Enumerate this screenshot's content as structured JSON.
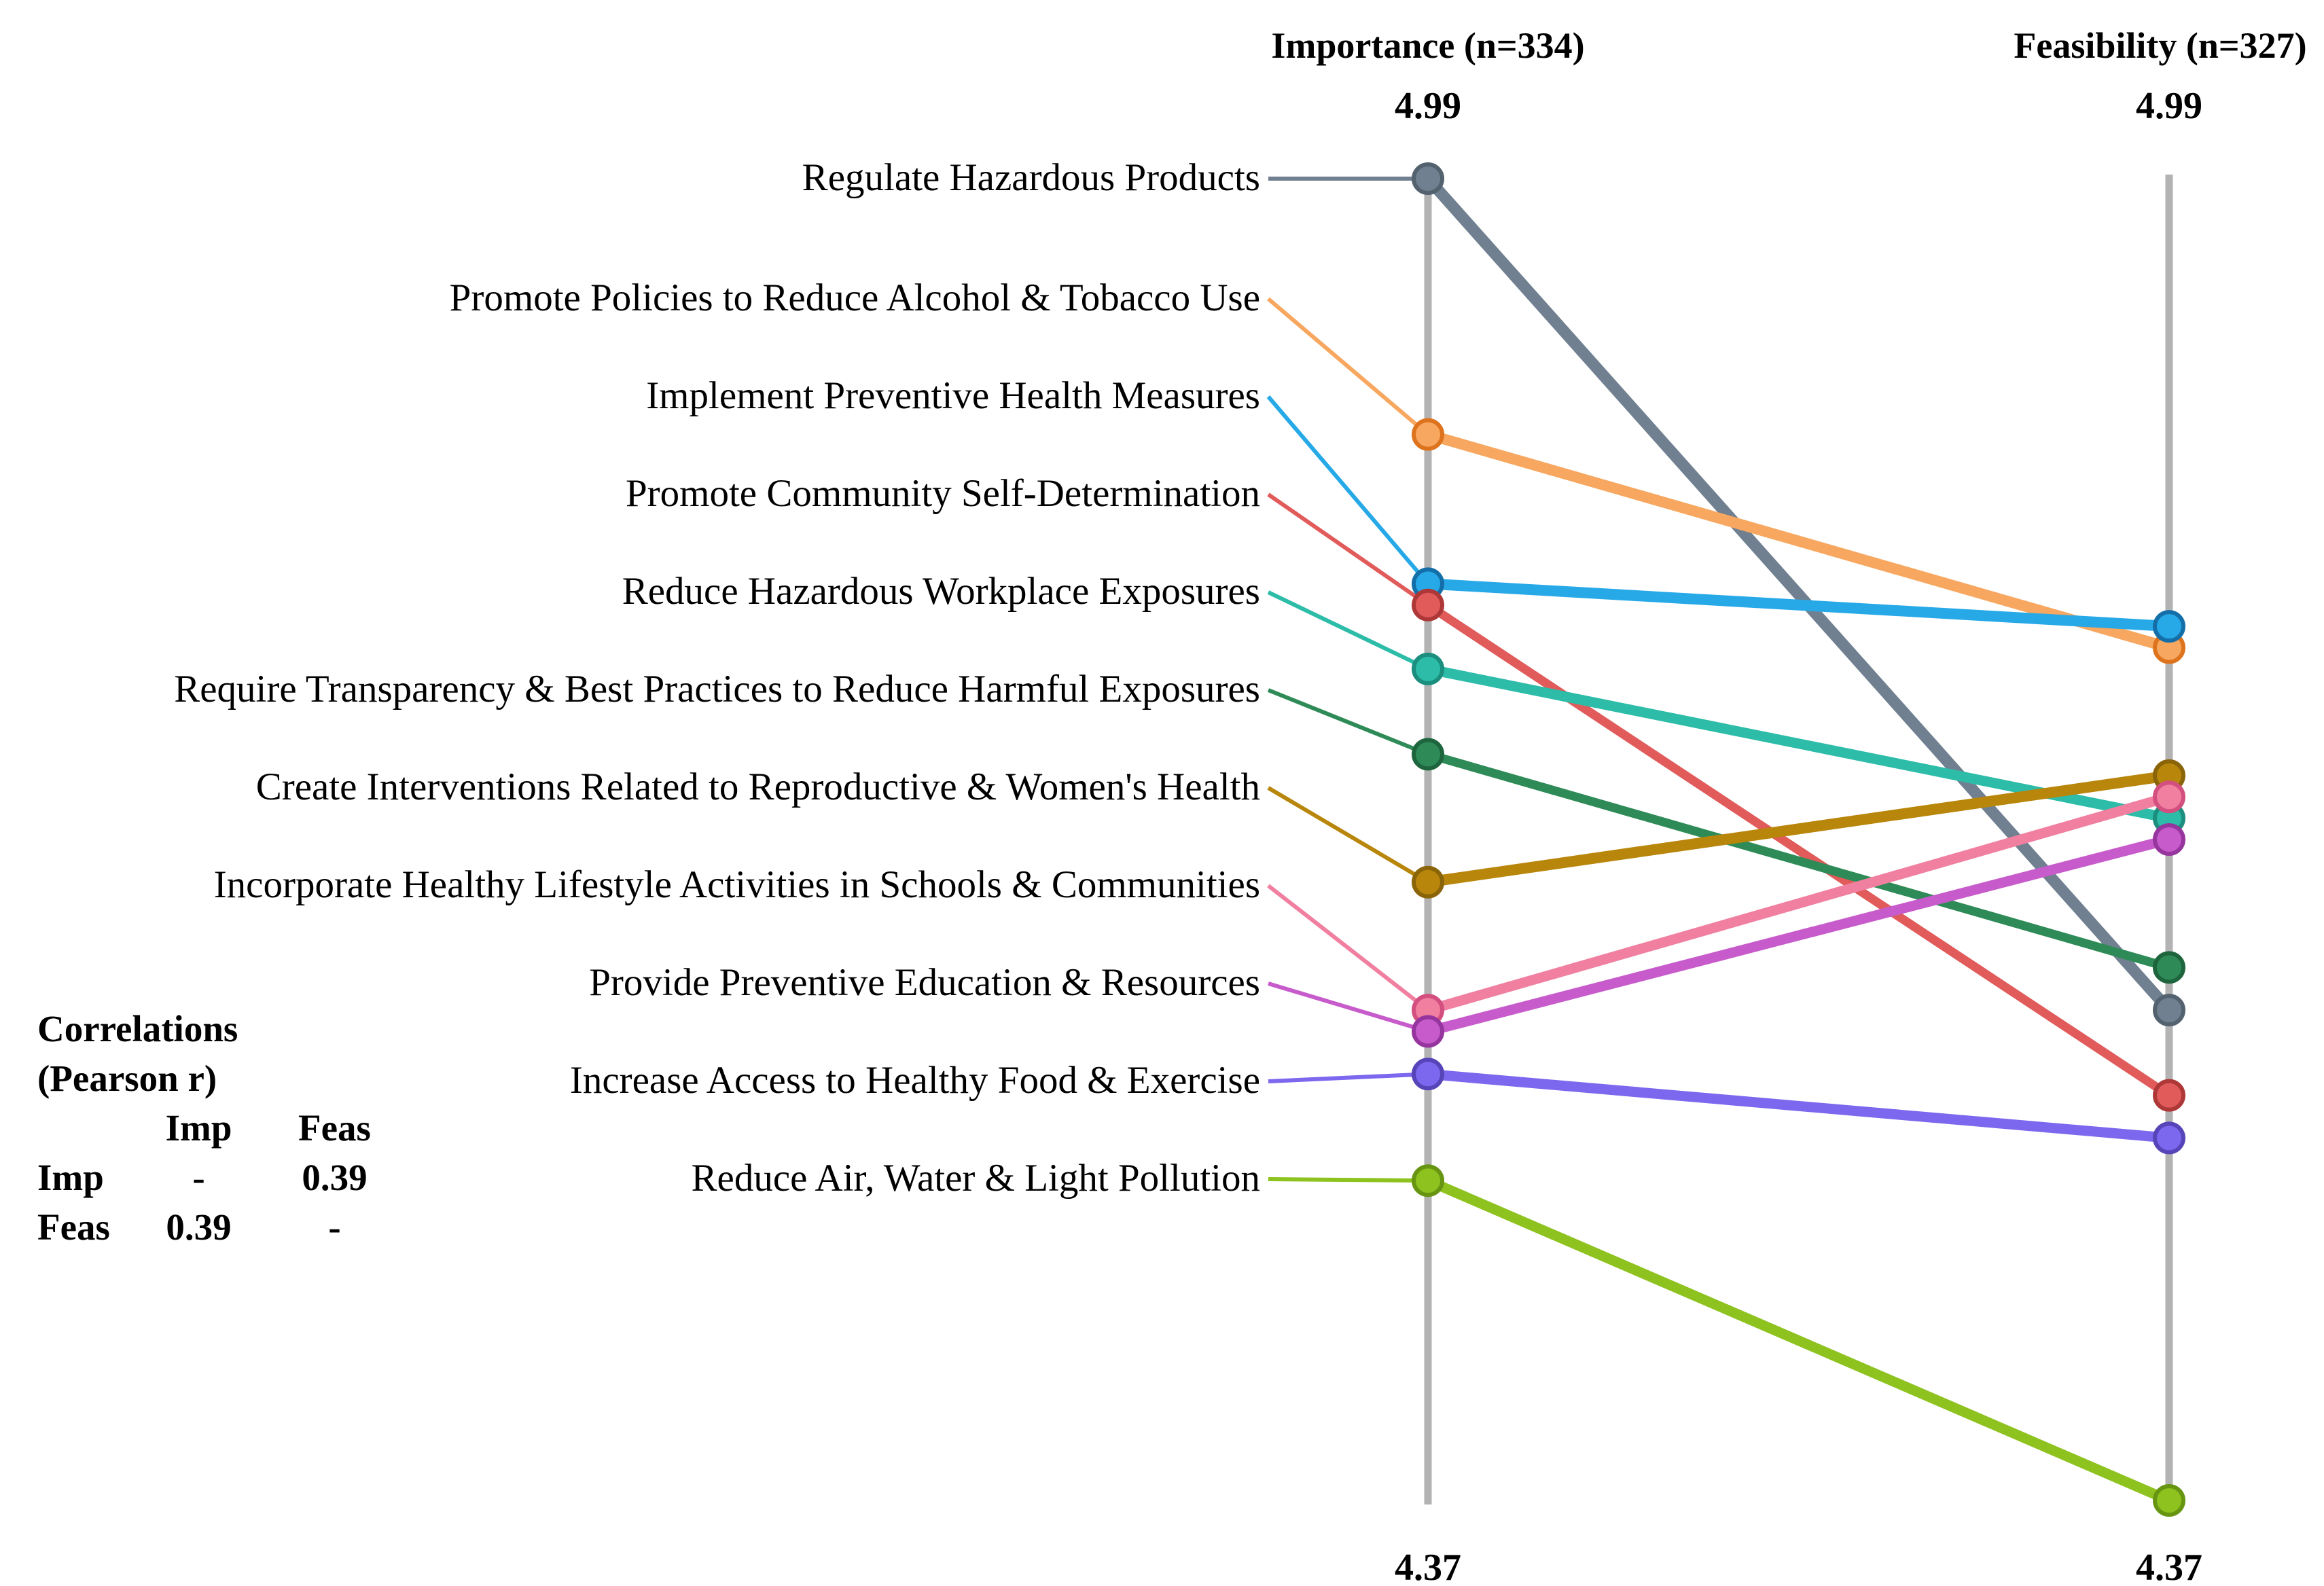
{
  "correlations": {
    "title_line1": "Correlations",
    "title_line2": "(Pearson r)",
    "col_headers": [
      "Imp",
      "Feas"
    ],
    "rows": [
      {
        "label": "Imp",
        "values": [
          "-",
          "0.39"
        ]
      },
      {
        "label": "Feas",
        "values": [
          "0.39",
          "-"
        ]
      }
    ]
  },
  "chart_data": {
    "type": "line",
    "variant": "slopegraph",
    "axis_range": [
      4.37,
      4.99
    ],
    "axis_color": "#b3b3b3",
    "correlation_imp_feas": 0.39,
    "columns": [
      {
        "key": "importance",
        "title": "Importance (n=334)",
        "axis_max_label": "4.99",
        "axis_min_label": "4.37"
      },
      {
        "key": "feasibility",
        "title": "Feasibility (n=327)",
        "axis_max_label": "4.99",
        "axis_min_label": "4.37"
      }
    ],
    "series": [
      {
        "name": "Regulate Hazardous Products",
        "importance": 4.99,
        "feasibility": 4.6,
        "color": "#708090",
        "edge": "#54626F",
        "lw": 17
      },
      {
        "name": "Promote Policies to Reduce Alcohol & Tobacco Use",
        "importance": 4.87,
        "feasibility": 4.77,
        "color": "#F7A75F",
        "edge": "#DE731D",
        "lw": 16
      },
      {
        "name": "Implement Preventive Health Measures",
        "importance": 4.8,
        "feasibility": 4.78,
        "color": "#27A9E8",
        "edge": "#146FA8",
        "lw": 16
      },
      {
        "name": "Promote Community Self-Determination",
        "importance": 4.79,
        "feasibility": 4.56,
        "color": "#E15B5B",
        "edge": "#AE3737",
        "lw": 13
      },
      {
        "name": "Reduce Hazardous Workplace Exposures",
        "importance": 4.76,
        "feasibility": 4.69,
        "color": "#2CBCA8",
        "edge": "#1B8E7E",
        "lw": 15
      },
      {
        "name": "Require Transparency & Best Practices to Reduce Harmful Exposures",
        "importance": 4.72,
        "feasibility": 4.62,
        "color": "#2E8B57",
        "edge": "#1E653E",
        "lw": 13
      },
      {
        "name": "Create Interventions Related to Reproductive & Women's Health",
        "importance": 4.66,
        "feasibility": 4.71,
        "color": "#B8860B",
        "edge": "#8A6408",
        "lw": 16
      },
      {
        "name": "Incorporate Healthy Lifestyle Activities in Schools & Communities",
        "importance": 4.6,
        "feasibility": 4.7,
        "color": "#F07FA0",
        "edge": "#D34F7F",
        "lw": 15
      },
      {
        "name": "Provide Preventive Education & Resources",
        "importance": 4.59,
        "feasibility": 4.68,
        "color": "#C75BCB",
        "edge": "#96359E",
        "lw": 15
      },
      {
        "name": "Increase Access to Healthy Food & Exercise",
        "importance": 4.57,
        "feasibility": 4.54,
        "color": "#7B68EE",
        "edge": "#5644B8",
        "lw": 15
      },
      {
        "name": "Reduce Air, Water & Light Pollution",
        "importance": 4.52,
        "feasibility": 4.37,
        "color": "#8DC21F",
        "edge": "#679512",
        "lw": 15
      }
    ]
  }
}
